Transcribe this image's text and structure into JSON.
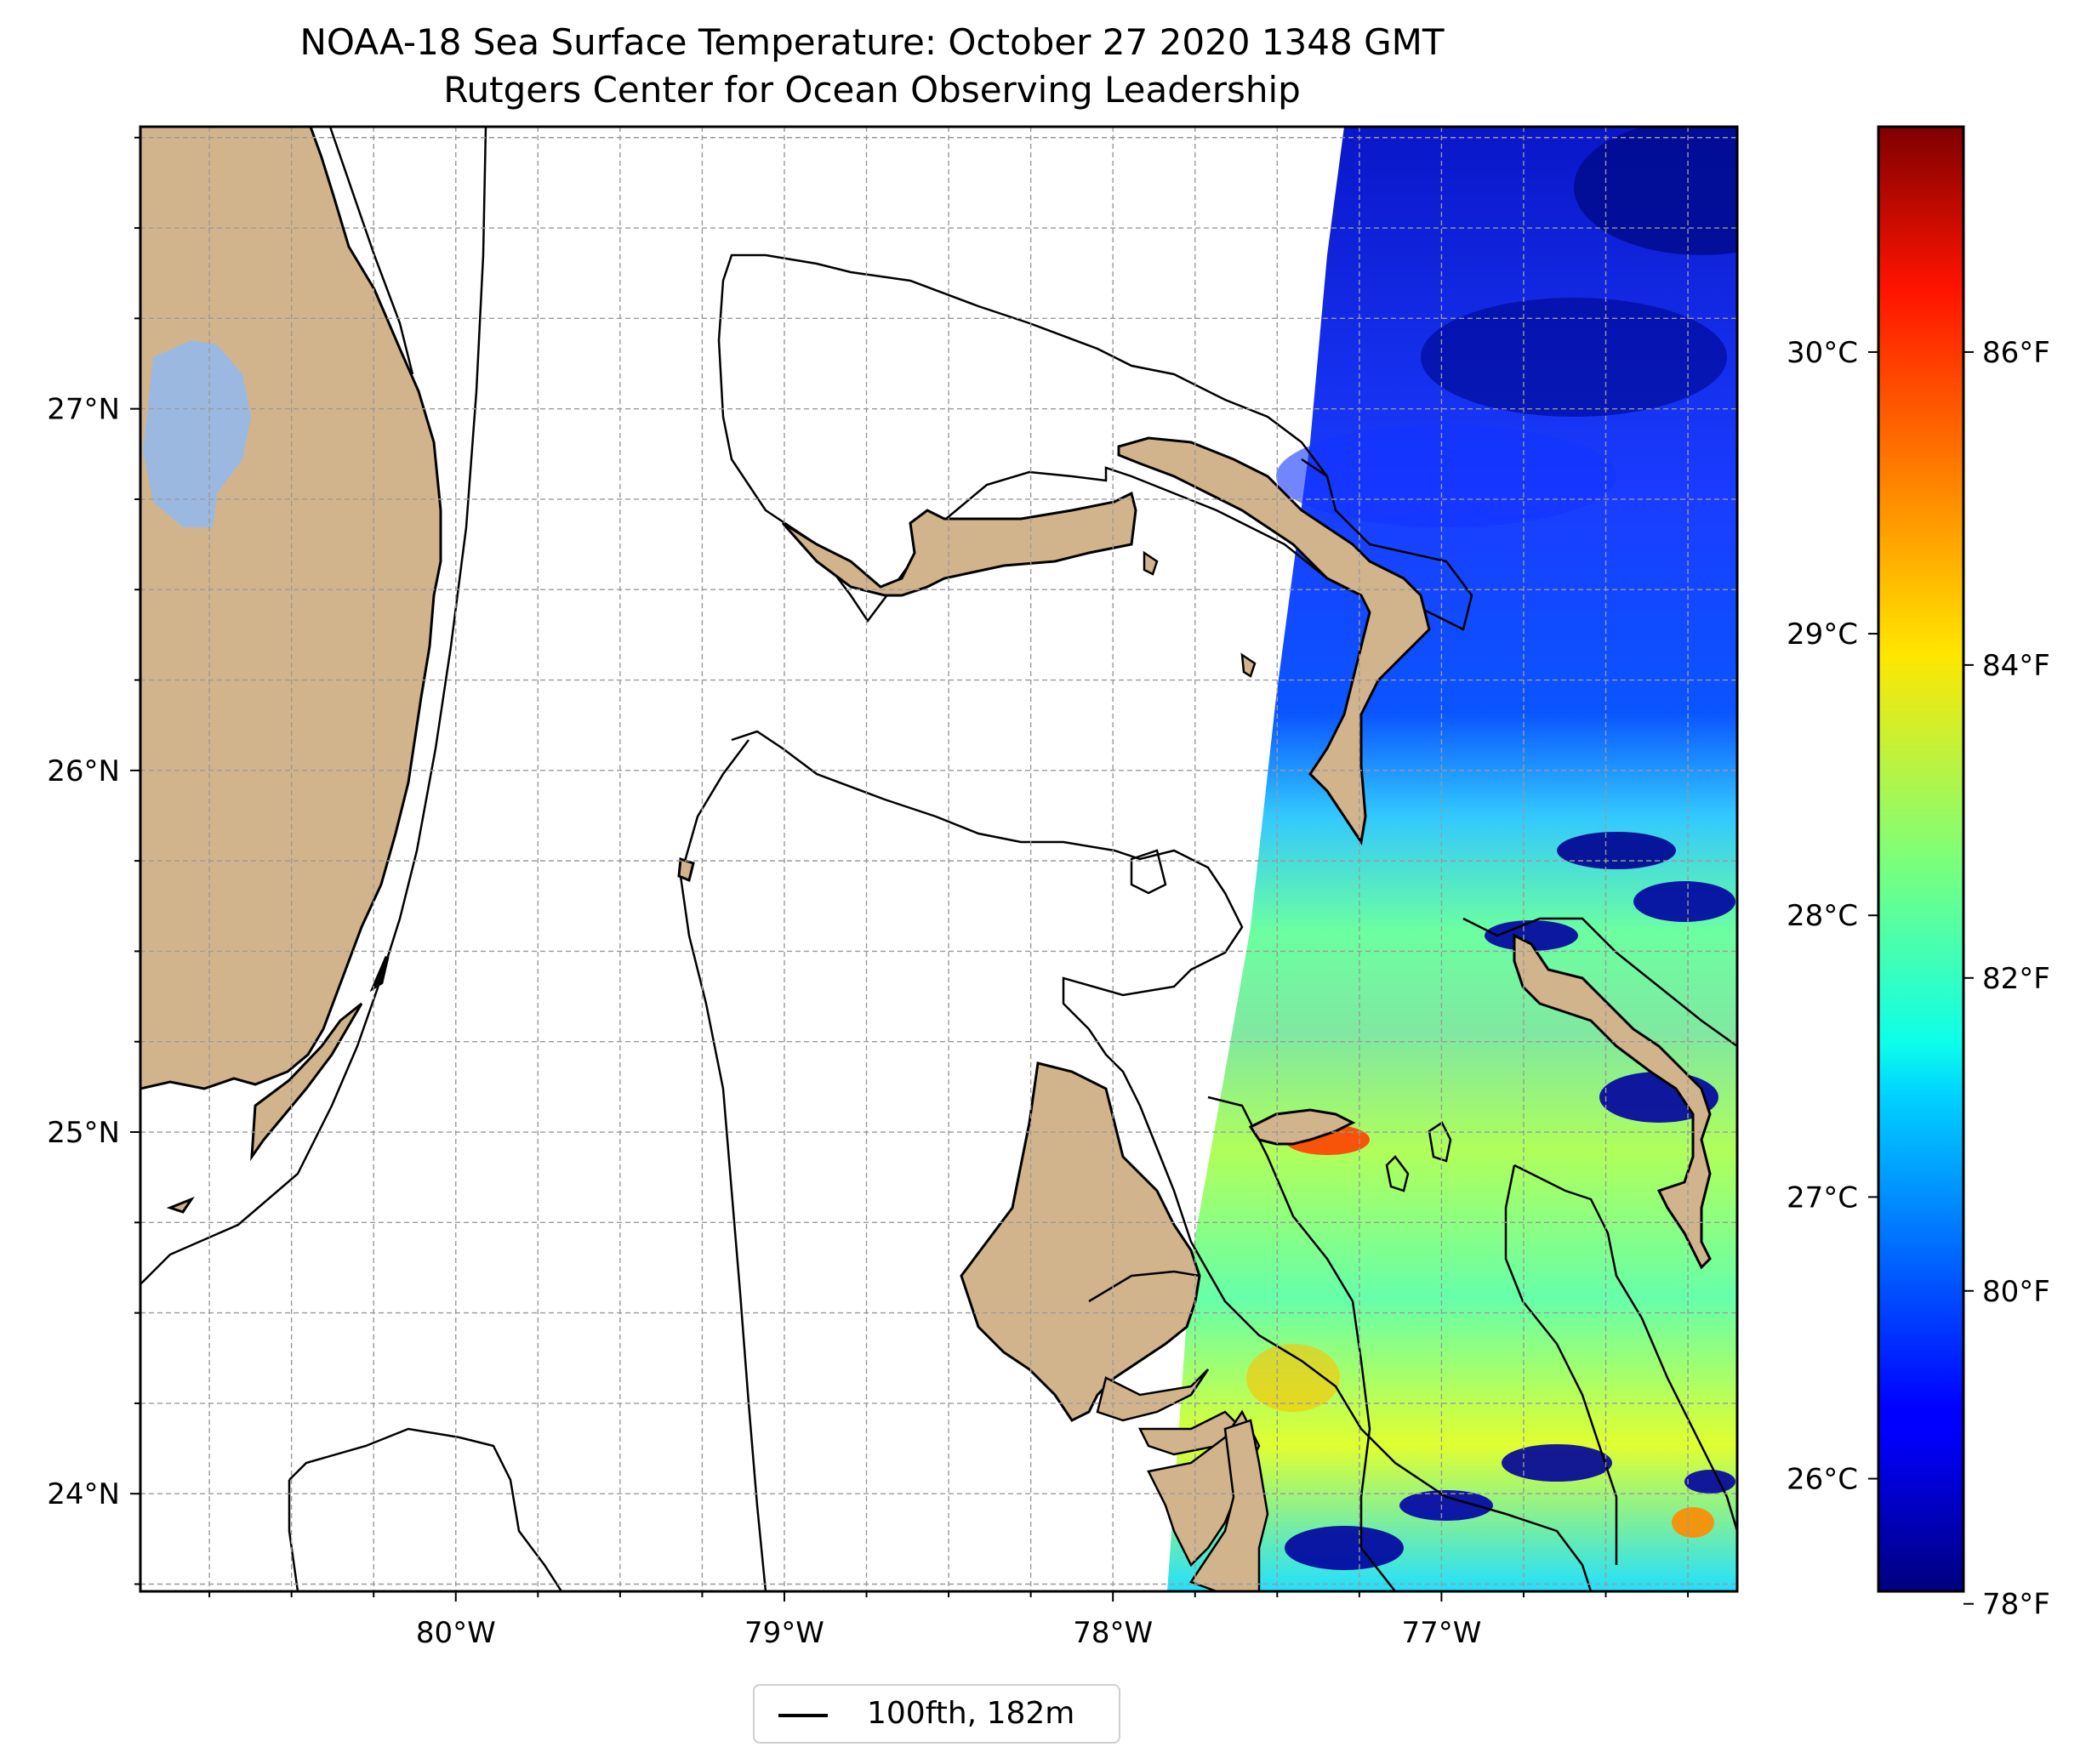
{
  "title": {
    "line1": "NOAA-18 Sea Surface Temperature: October 27 2020 1348 GMT",
    "line2": "Rutgers Center for Ocean Observing Leadership"
  },
  "map": {
    "lon_range": [
      -80.96,
      -76.1
    ],
    "lat_range": [
      23.73,
      27.78
    ],
    "lon_ticks": [
      {
        "value": -80,
        "label": "80°W"
      },
      {
        "value": -79,
        "label": "79°W"
      },
      {
        "value": -78,
        "label": "78°W"
      },
      {
        "value": -77,
        "label": "77°W"
      }
    ],
    "lat_ticks": [
      {
        "value": 24,
        "label": "24°N"
      },
      {
        "value": 25,
        "label": "25°N"
      },
      {
        "value": 26,
        "label": "26°N"
      },
      {
        "value": 27,
        "label": "27°N"
      }
    ],
    "gridlines": "dashed, every 0.25°",
    "land_color": "#d2b48c",
    "lake_color": "#9bb8e0",
    "places": [
      "Florida",
      "Lake Okeechobee",
      "Grand Bahama",
      "Abaco",
      "Andros",
      "Eleuthera",
      "New Providence",
      "Bimini",
      "Florida Keys"
    ]
  },
  "colorbar": {
    "colormap": "jet",
    "celsius_range": [
      25.6,
      30.8
    ],
    "celsius_ticks": [
      {
        "value": 26,
        "label": "26°C"
      },
      {
        "value": 27,
        "label": "27°C"
      },
      {
        "value": 28,
        "label": "28°C"
      },
      {
        "value": 29,
        "label": "29°C"
      },
      {
        "value": 30,
        "label": "30°C"
      }
    ],
    "fahrenheit_ticks": [
      {
        "value": 78,
        "label": "78°F"
      },
      {
        "value": 80,
        "label": "80°F"
      },
      {
        "value": 82,
        "label": "82°F"
      },
      {
        "value": 84,
        "label": "84°F"
      },
      {
        "value": 86,
        "label": "86°F"
      }
    ]
  },
  "legend": {
    "label": "100fth, 182m"
  }
}
